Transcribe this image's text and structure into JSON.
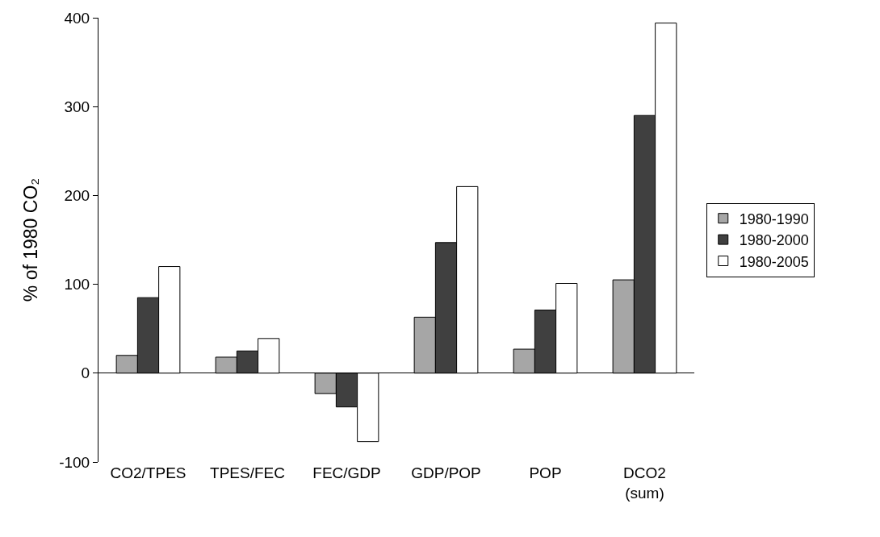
{
  "chart_data": {
    "type": "bar",
    "ylabel": "% of 1980 CO₂",
    "categories": [
      "CO2/TPES",
      "TPES/FEC",
      "FEC/GDP",
      "GDP/POP",
      "POP",
      "DCO2\n(sum)"
    ],
    "series": [
      {
        "name": "1980-1990",
        "color": "#a6a6a6",
        "values": [
          20,
          18,
          -23,
          63,
          27,
          105
        ]
      },
      {
        "name": "1980-2000",
        "color": "#404040",
        "values": [
          85,
          25,
          -38,
          147,
          71,
          290
        ]
      },
      {
        "name": "1980-2005",
        "color": "#ffffff",
        "values": [
          120,
          39,
          -77,
          210,
          101,
          394
        ]
      }
    ],
    "ylim": [
      -100,
      400
    ],
    "yticks": [
      -100,
      0,
      100,
      200,
      300,
      400
    ],
    "legend": "right"
  }
}
